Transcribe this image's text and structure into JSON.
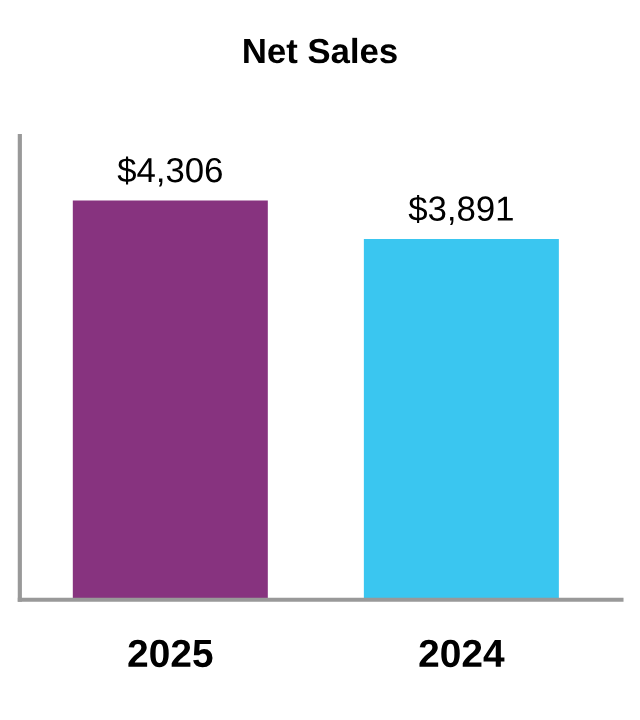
{
  "chart_data": {
    "type": "bar",
    "title": "Net Sales",
    "categories": [
      "2025",
      "2024"
    ],
    "values": [
      4306,
      3891
    ],
    "colors": [
      "#87337f",
      "#3ac6f0"
    ],
    "value_labels": [
      "$4,306",
      "$3,891"
    ],
    "ylim": [
      0,
      5000
    ],
    "tick_labels": "x",
    "grid": false
  }
}
